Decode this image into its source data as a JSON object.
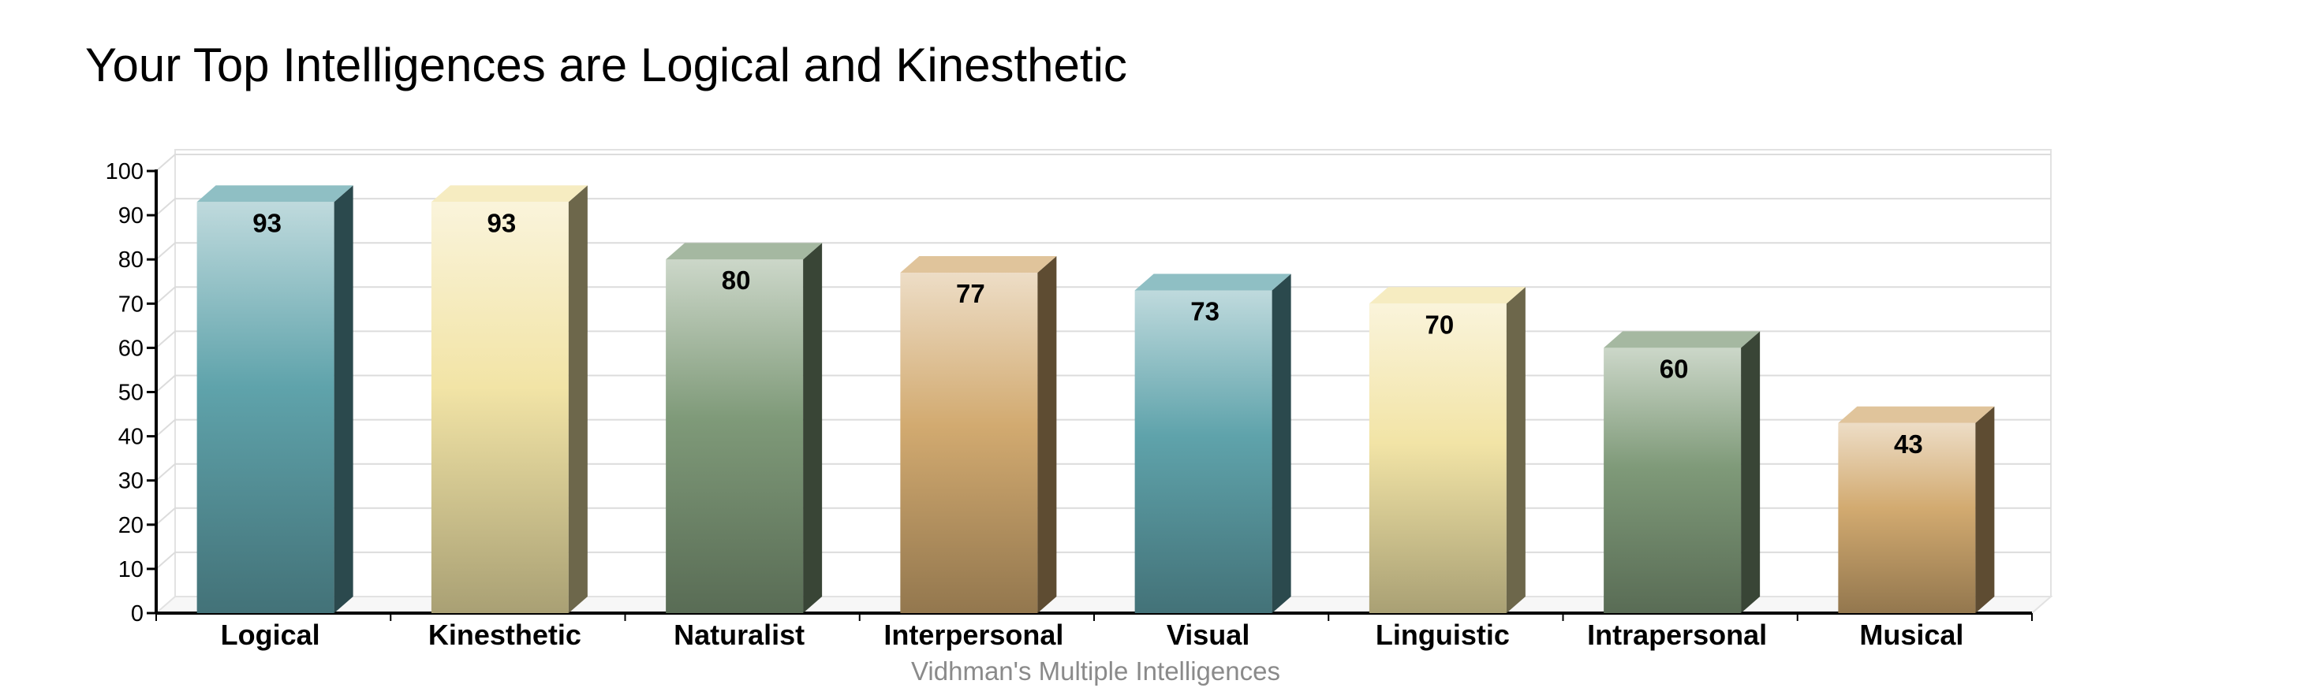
{
  "chart_data": {
    "type": "bar",
    "title": "Your Top Intelligences are Logical and Kinesthetic",
    "xlabel": "Vidhman's Multiple Intelligences",
    "ylabel": "",
    "categories": [
      "Logical",
      "Kinesthetic",
      "Naturalist",
      "Interpersonal",
      "Visual",
      "Linguistic",
      "Intrapersonal",
      "Musical"
    ],
    "values": [
      93,
      93,
      80,
      77,
      73,
      70,
      60,
      43
    ],
    "ylim": [
      0,
      100
    ],
    "yticks": [
      "0",
      "10",
      "20",
      "30",
      "40",
      "50",
      "60",
      "70",
      "80",
      "90",
      "100"
    ],
    "grid": true,
    "legend": "none",
    "style": "3d-column",
    "colors": [
      "#5fa3ab",
      "#f2e4a6",
      "#7f9a79",
      "#d2aa70",
      "#5fa3ab",
      "#f2e4a6",
      "#7f9a79",
      "#d2aa70"
    ]
  }
}
